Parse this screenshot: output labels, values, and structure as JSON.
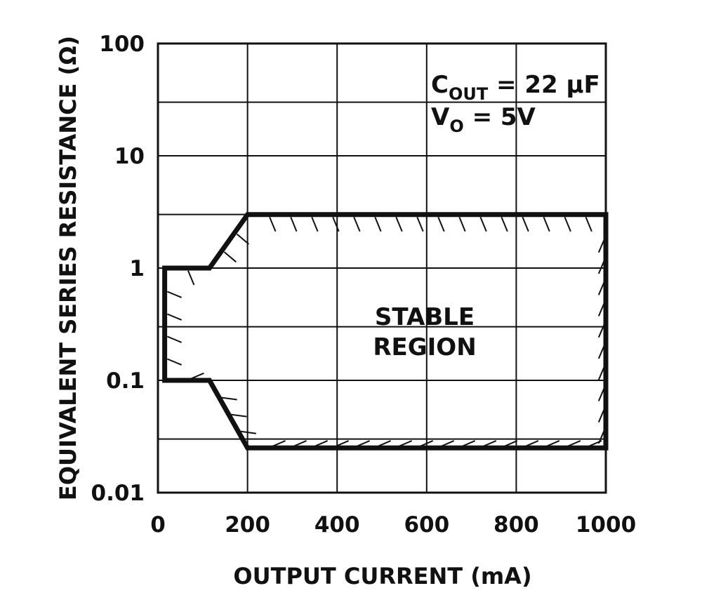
{
  "chart_data": {
    "type": "area",
    "xlabel": "OUTPUT CURRENT (mA)",
    "ylabel": "EQUIVALENT SERIES RESISTANCE (Ω)",
    "xlim": [
      0,
      1000
    ],
    "ylim": [
      0.01,
      100
    ],
    "y_scale": "log",
    "grid": true,
    "x_ticks": [
      "0",
      "200",
      "400",
      "600",
      "800",
      "1000"
    ],
    "x_tick_values": [
      0,
      200,
      400,
      600,
      800,
      1000
    ],
    "y_ticks": [
      "100",
      "10",
      "1",
      "0.1",
      "0.01"
    ],
    "y_tick_values": [
      100,
      10,
      1,
      0.1,
      0.01
    ],
    "region_label_line1": "STABLE",
    "region_label_line2": "REGION",
    "condition_c_main": "C",
    "condition_c_sub": "OUT",
    "condition_c_value": " = 22 μF",
    "condition_v_main": "V",
    "condition_v_sub": "O",
    "condition_v_value": " = 5V",
    "boundary": {
      "x": [
        15,
        115,
        200,
        1000,
        1000,
        200,
        115,
        15
      ],
      "y": [
        1,
        1,
        3,
        3,
        0.025,
        0.025,
        0.1,
        0.1
      ]
    }
  }
}
